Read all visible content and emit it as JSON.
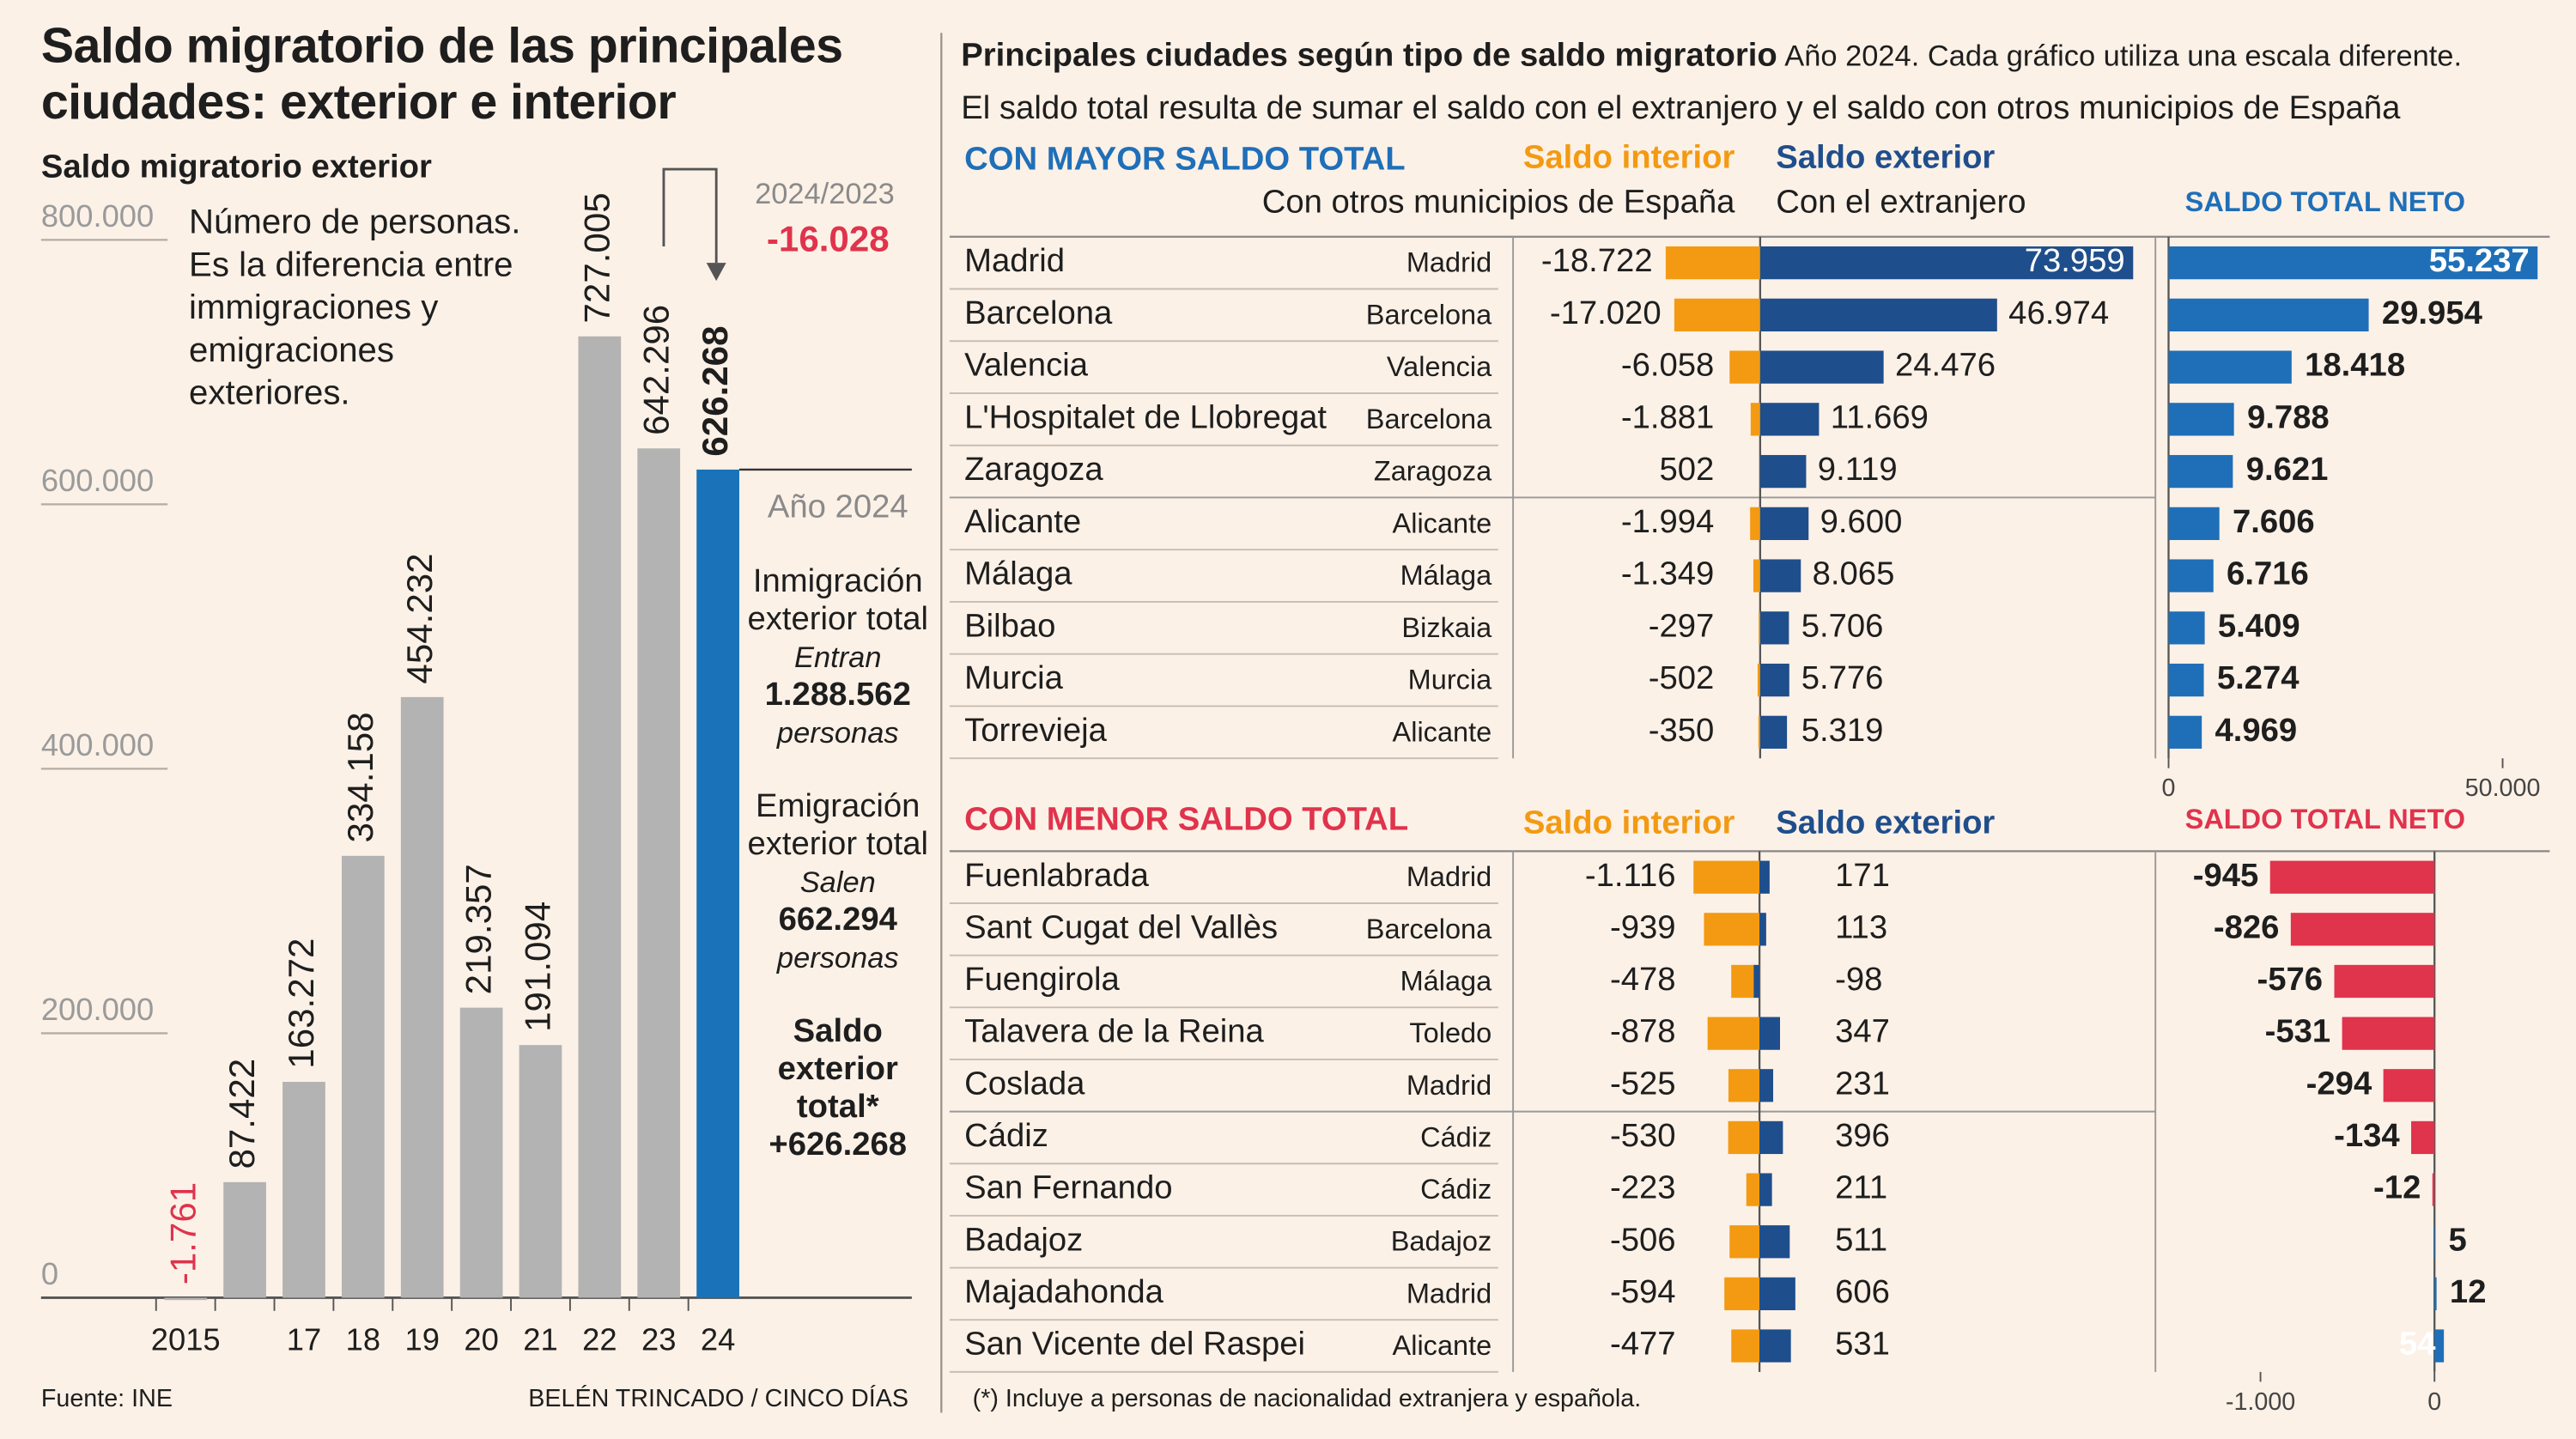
{
  "title": "Saldo migratorio de las principales ciudades: exterior e interior",
  "source": "Fuente: INE",
  "credit": "BELÉN TRINCADO / CINCO DÍAS",
  "footnote": "(*) Incluye a personas de nacionalidad extranjera y española.",
  "header": {
    "title": "Principales ciudades según tipo de saldo migratorio",
    "subtitle": "Año 2024. Cada gráfico utiliza una escala diferente.",
    "description": "El saldo total resulta de sumar el saldo con el extranjero y el saldo con otros municipios de España"
  },
  "chart_data": [
    {
      "type": "bar",
      "subtitle": "Saldo migratorio exterior",
      "note": "Número de personas. Es la diferencia entre immigraciones y emigraciones exteriores.",
      "categories": [
        "2015",
        null,
        "17",
        "18",
        "19",
        "20",
        "21",
        "22",
        "23",
        "24"
      ],
      "values": [
        -1761,
        87422,
        163272,
        334158,
        454232,
        219357,
        191094,
        727005,
        642296,
        626268
      ],
      "value_labels": [
        "-1.761",
        "87.422",
        "163.272",
        "334.158",
        "454.232",
        "219.357",
        "191.094",
        "727.005",
        "642.296",
        "626.268"
      ],
      "colors": [
        "#b3b3b3",
        "#b3b3b3",
        "#b3b3b3",
        "#b3b3b3",
        "#b3b3b3",
        "#b3b3b3",
        "#b3b3b3",
        "#b3b3b3",
        "#b3b3b3",
        "#1a73b8"
      ],
      "negative_label_color": "#e0334c",
      "ylim": [
        0,
        800000
      ],
      "yticks": [
        0,
        {
          "value": 200000,
          "label": "200.000"
        },
        {
          "value": 400000,
          "label": "400.000"
        },
        {
          "value": 600000,
          "label": "600.000"
        },
        {
          "value": 800000,
          "label": "800.000"
        }
      ],
      "change": {
        "label": "2024/2023",
        "value_label": "-16.028"
      },
      "panel": {
        "title": "Año 2024",
        "blocks": [
          {
            "heading": "Inmigración exterior total",
            "verb": "Entran",
            "amount": "1.288.562",
            "unit": "personas"
          },
          {
            "heading": "Emigración exterior total",
            "verb": "Salen",
            "amount": "662.294",
            "unit": "personas"
          },
          {
            "heading": "Saldo exterior total*",
            "amount": "+626.268"
          }
        ]
      }
    },
    {
      "type": "bar_table",
      "title": "CON MAYOR SALDO TOTAL",
      "accent": "#1f6fb8",
      "categories": [
        "Madrid",
        "Barcelona",
        "Valencia",
        "L'Hospitalet de Llobregat",
        "Zaragoza",
        "Alicante",
        "Málaga",
        "Bilbao",
        "Murcia",
        "Torrevieja"
      ],
      "provinces": [
        "Madrid",
        "Barcelona",
        "Valencia",
        "Barcelona",
        "Zaragoza",
        "Alicante",
        "Málaga",
        "Bizkaia",
        "Murcia",
        "Alicante"
      ],
      "series": [
        {
          "name": "Saldo interior",
          "subtitle": "Con otros municipios de España",
          "color": "#f39a12",
          "values": [
            -18722,
            -17020,
            -6058,
            -1881,
            502,
            -1994,
            -1349,
            -297,
            -502,
            -350
          ],
          "value_labels": [
            "-18.722",
            "-17.020",
            "-6.058",
            "-1.881",
            "502",
            "-1.994",
            "-1.349",
            "-297",
            "-502",
            "-350"
          ]
        },
        {
          "name": "Saldo exterior",
          "subtitle": "Con el extranjero",
          "color": "#1f4e8c",
          "values": [
            73959,
            46974,
            24476,
            11669,
            9119,
            9600,
            8065,
            5706,
            5776,
            5319
          ],
          "value_labels": [
            "73.959",
            "46.974",
            "24.476",
            "11.669",
            "9.119",
            "9.600",
            "8.065",
            "5.706",
            "5.776",
            "5.319"
          ]
        },
        {
          "name": "SALDO TOTAL NETO",
          "color": "#1f6fb8",
          "axis": "x2",
          "values": [
            55237,
            29954,
            18418,
            9788,
            9621,
            7606,
            6716,
            5409,
            5274,
            4969
          ],
          "value_labels": [
            "55.237",
            "29.954",
            "18.418",
            "9.788",
            "9.621",
            "7.606",
            "6.716",
            "5.409",
            "5.274",
            "4.969"
          ]
        }
      ],
      "xlim": [
        -20000,
        80000
      ],
      "x2lim": [
        0,
        60000
      ],
      "x2ticks": [
        0,
        {
          "value": 50000,
          "label": "50.000"
        }
      ]
    },
    {
      "type": "bar_table",
      "title": "CON MENOR SALDO TOTAL",
      "accent": "#e0334c",
      "categories": [
        "Fuenlabrada",
        "Sant Cugat del Vallès",
        "Fuengirola",
        "Talavera de la Reina",
        "Coslada",
        "Cádiz",
        "San Fernando",
        "Badajoz",
        "Majadahonda",
        "San Vicente del Raspei"
      ],
      "provinces": [
        "Madrid",
        "Barcelona",
        "Málaga",
        "Toledo",
        "Madrid",
        "Cádiz",
        "Cádiz",
        "Badajoz",
        "Madrid",
        "Alicante"
      ],
      "series": [
        {
          "name": "Saldo interior",
          "color": "#f39a12",
          "values": [
            -1116,
            -939,
            -478,
            -878,
            -525,
            -530,
            -223,
            -506,
            -594,
            -477
          ],
          "value_labels": [
            "-1.116",
            "-939",
            "-478",
            "-878",
            "-525",
            "-530",
            "-223",
            "-506",
            "-594",
            "-477"
          ]
        },
        {
          "name": "Saldo exterior",
          "color": "#1f4e8c",
          "values": [
            171,
            113,
            -98,
            347,
            231,
            396,
            211,
            511,
            606,
            531
          ],
          "value_labels": [
            "171",
            "113",
            "-98",
            "347",
            "231",
            "396",
            "211",
            "511",
            "606",
            "531"
          ]
        },
        {
          "name": "SALDO TOTAL NETO",
          "color": "#1f6fb8",
          "negative_color": "#e0334c",
          "axis": "x2",
          "values": [
            -945,
            -826,
            -576,
            -531,
            -294,
            -134,
            -12,
            5,
            12,
            54
          ],
          "value_labels": [
            "-945",
            "-826",
            "-576",
            "-531",
            "-294",
            "-134",
            "-12",
            "5",
            "12",
            "54"
          ]
        }
      ],
      "xlim": [
        -1500,
        1500
      ],
      "x2lim": [
        -1500,
        700
      ],
      "x2ticks": [
        {
          "value": -1000,
          "label": "-1.000"
        },
        0
      ]
    }
  ]
}
